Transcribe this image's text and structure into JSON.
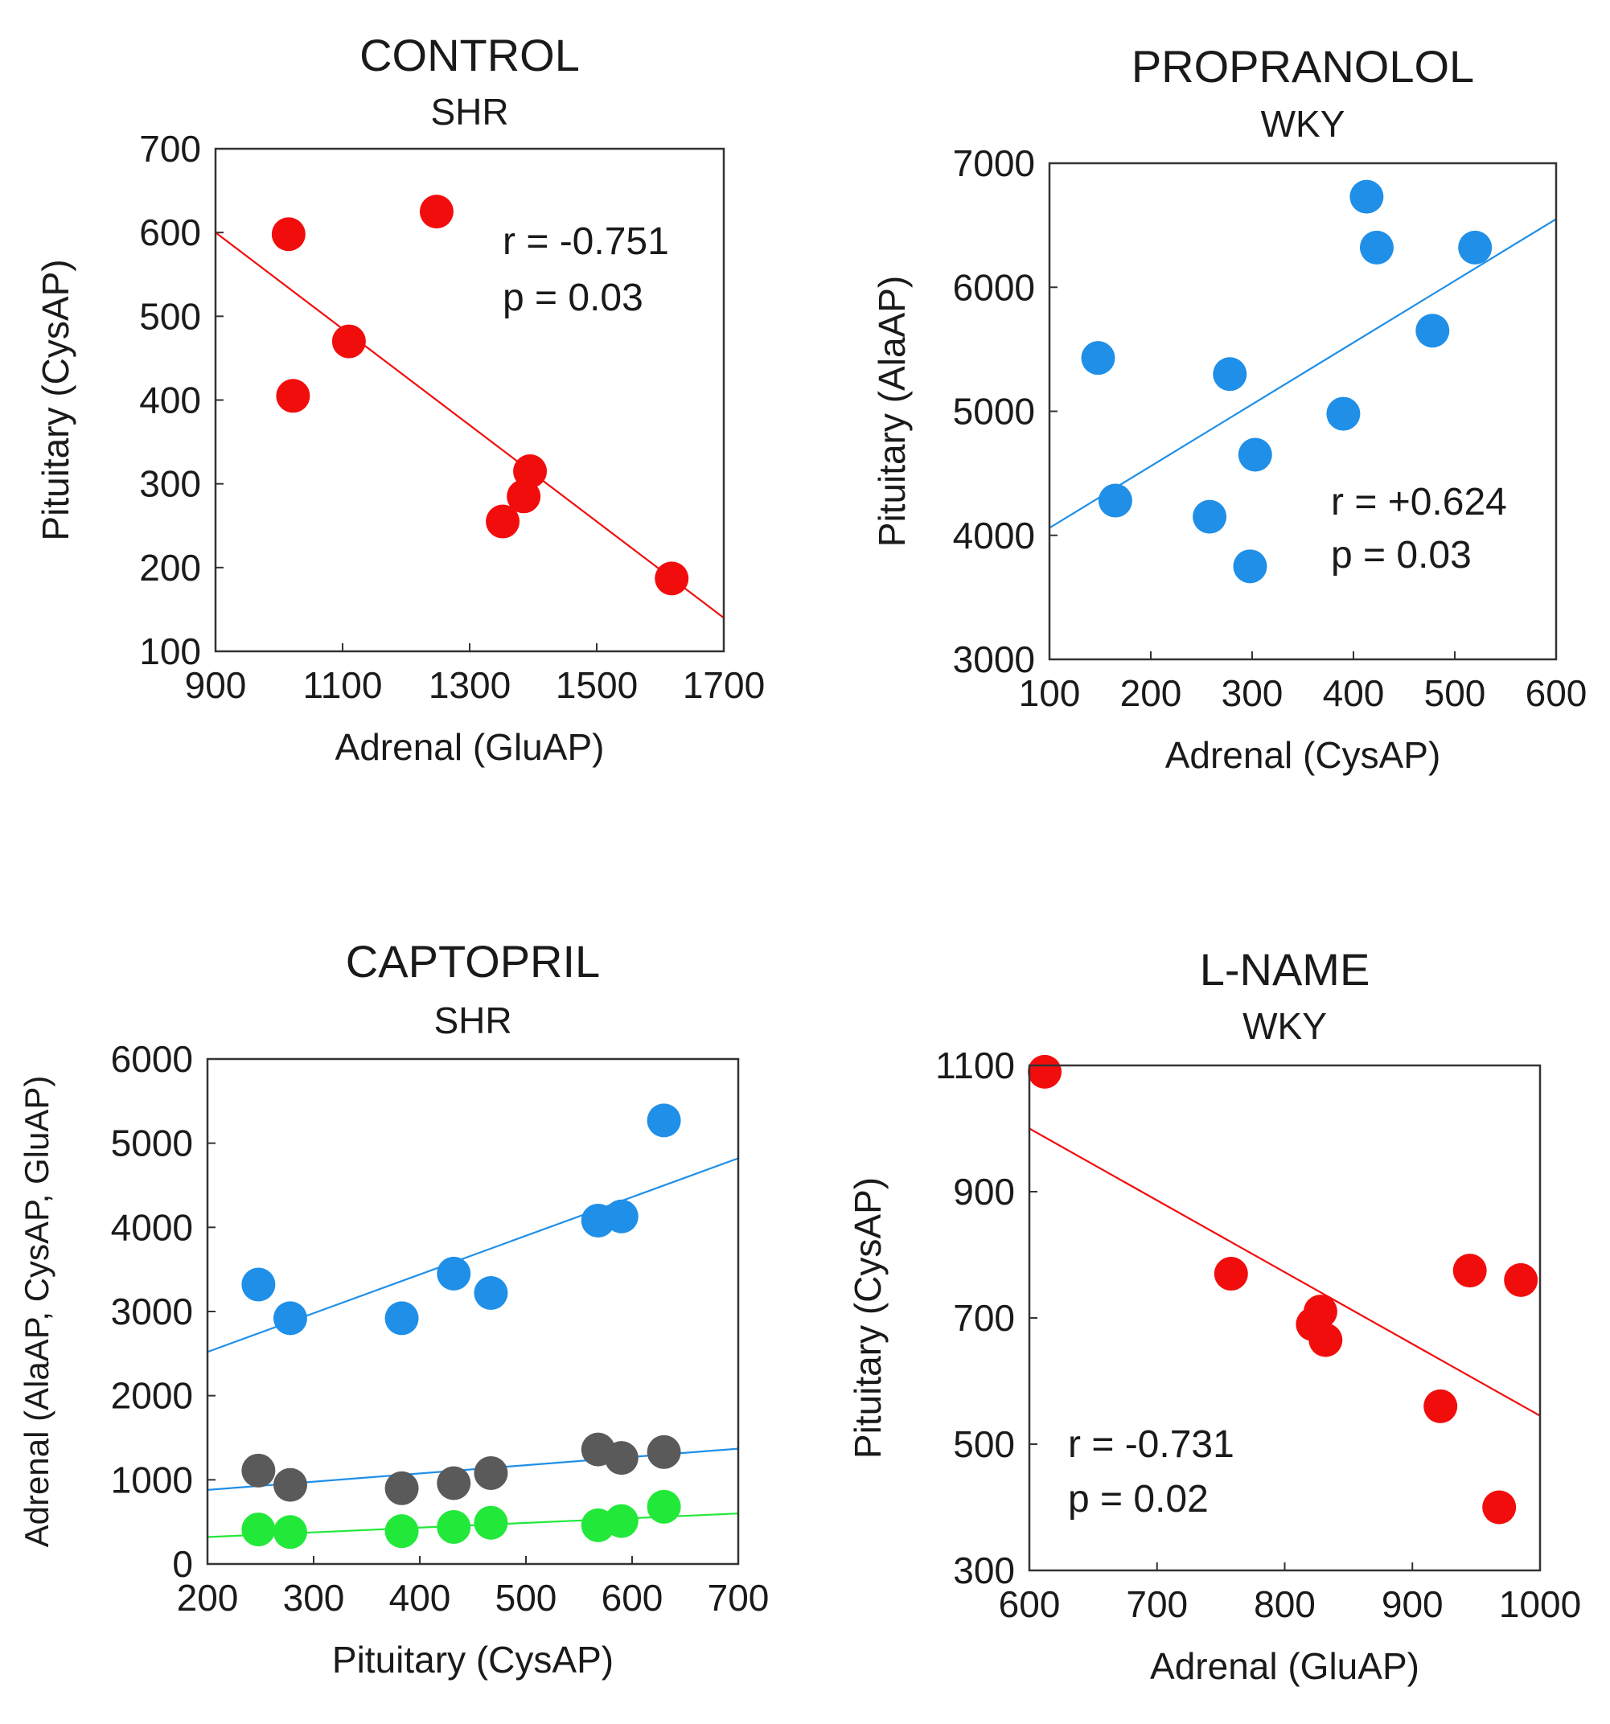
{
  "colors": {
    "red": "#f20d0d",
    "blue": "#1f8fe8",
    "gray": "#5a5a5a",
    "green": "#22e83a"
  },
  "chart_data": [
    {
      "type": "scatter",
      "title": "CONTROL",
      "subtitle": "SHR",
      "xlabel": "Adrenal (GluAP)",
      "ylabel": "Pituitary (CysAP)",
      "xlim": [
        900,
        1700
      ],
      "ylim": [
        100,
        700
      ],
      "xticks": [
        "900",
        "1100",
        "1300",
        "1500",
        "1700"
      ],
      "yticks": [
        "100",
        "200",
        "300",
        "400",
        "500",
        "600",
        "700"
      ],
      "annotations": [
        "r = -0.751",
        "p = 0.03"
      ],
      "series": [
        {
          "color": "#f20d0d",
          "points": [
            [
              1015,
              598
            ],
            [
              1248,
              625
            ],
            [
              1110,
              470
            ],
            [
              1022,
              405
            ],
            [
              1395,
              315
            ],
            [
              1385,
              285
            ],
            [
              1352,
              255
            ],
            [
              1618,
              187
            ]
          ],
          "fit": [
            [
              900,
              600
            ],
            [
              1700,
              140
            ]
          ]
        }
      ]
    },
    {
      "type": "scatter",
      "title": "PROPRANOLOL",
      "subtitle": "WKY",
      "xlabel": "Adrenal (CysAP)",
      "ylabel": "Pituitary (AlaAP)",
      "xlim": [
        100,
        600
      ],
      "ylim": [
        3000,
        7000
      ],
      "xticks": [
        "100",
        "200",
        "300",
        "400",
        "500",
        "600"
      ],
      "yticks": [
        "3000",
        "4000",
        "5000",
        "6000",
        "7000"
      ],
      "annotations": [
        "r = +0.624",
        "p = 0.03"
      ],
      "series": [
        {
          "color": "#1f8fe8",
          "points": [
            [
              148,
              5430
            ],
            [
              165,
              4280
            ],
            [
              278,
              5300
            ],
            [
              258,
              4150
            ],
            [
              298,
              3750
            ],
            [
              303,
              4650
            ],
            [
              390,
              4980
            ],
            [
              413,
              6730
            ],
            [
              423,
              6320
            ],
            [
              478,
              5650
            ],
            [
              520,
              6320
            ]
          ],
          "fit": [
            [
              100,
              4060
            ],
            [
              600,
              6550
            ]
          ]
        }
      ]
    },
    {
      "type": "scatter",
      "title": "CAPTOPRIL",
      "subtitle": "SHR",
      "xlabel": "Pituitary (CysAP)",
      "ylabel": "Adrenal (AlaAP, CysAP, GluAP)",
      "xlim": [
        200,
        700
      ],
      "ylim": [
        0,
        6000
      ],
      "xticks": [
        "200",
        "300",
        "400",
        "500",
        "600",
        "700"
      ],
      "yticks": [
        "0",
        "1000",
        "2000",
        "3000",
        "4000",
        "5000",
        "6000"
      ],
      "annotations": [],
      "series": [
        {
          "color": "#1f8fe8",
          "points": [
            [
              248,
              3320
            ],
            [
              278,
              2920
            ],
            [
              383,
              2920
            ],
            [
              432,
              3450
            ],
            [
              467,
              3220
            ],
            [
              568,
              4080
            ],
            [
              590,
              4130
            ],
            [
              630,
              5270
            ]
          ],
          "fit": [
            [
              200,
              2520
            ],
            [
              700,
              4820
            ]
          ]
        },
        {
          "color": "#5a5a5a",
          "points": [
            [
              248,
              1110
            ],
            [
              278,
              940
            ],
            [
              383,
              900
            ],
            [
              432,
              960
            ],
            [
              467,
              1080
            ],
            [
              568,
              1360
            ],
            [
              590,
              1260
            ],
            [
              630,
              1330
            ]
          ],
          "fit": [
            [
              200,
              880
            ],
            [
              700,
              1370
            ]
          ],
          "fit_color": "#1f8fe8"
        },
        {
          "color": "#22e83a",
          "points": [
            [
              248,
              410
            ],
            [
              278,
              380
            ],
            [
              383,
              390
            ],
            [
              432,
              440
            ],
            [
              467,
              490
            ],
            [
              568,
              460
            ],
            [
              590,
              510
            ],
            [
              630,
              680
            ]
          ],
          "fit": [
            [
              200,
              320
            ],
            [
              700,
              600
            ]
          ]
        }
      ]
    },
    {
      "type": "scatter",
      "title": "L-NAME",
      "subtitle": "WKY",
      "xlabel": "Adrenal (GluAP)",
      "ylabel": "Pituitary (CysAP)",
      "xlim": [
        600,
        1000
      ],
      "ylim": [
        300,
        1100
      ],
      "xticks": [
        "600",
        "700",
        "800",
        "900",
        "1000"
      ],
      "yticks": [
        "300",
        "500",
        "700",
        "900",
        "1100"
      ],
      "annotations": [
        "r = -0.731",
        "p = 0.02"
      ],
      "series": [
        {
          "color": "#f20d0d",
          "points": [
            [
              612,
              1090
            ],
            [
              758,
              770
            ],
            [
              822,
              690
            ],
            [
              828,
              710
            ],
            [
              832,
              665
            ],
            [
              945,
              775
            ],
            [
              985,
              760
            ],
            [
              922,
              560
            ],
            [
              968,
              400
            ]
          ],
          "fit": [
            [
              600,
              1000
            ],
            [
              1000,
              545
            ]
          ]
        }
      ]
    }
  ]
}
